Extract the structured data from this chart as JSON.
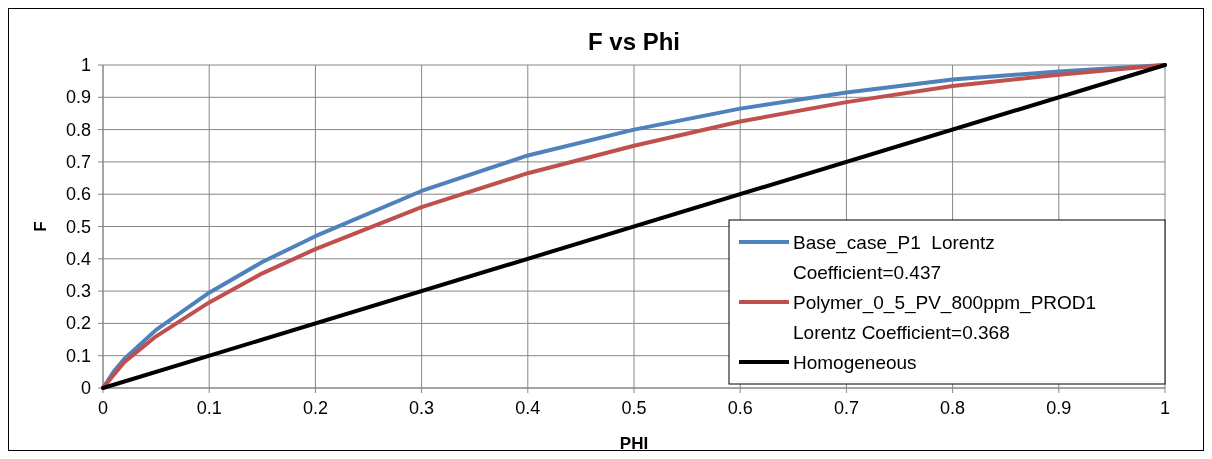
{
  "chart_data": {
    "type": "line",
    "title": "F vs Phi",
    "xlabel": "PHI",
    "ylabel": "F",
    "xlim": [
      0,
      1
    ],
    "ylim": [
      0,
      1
    ],
    "xticks": [
      0,
      0.1,
      0.2,
      0.3,
      0.4,
      0.5,
      0.6,
      0.7,
      0.8,
      0.9,
      1
    ],
    "yticks": [
      0,
      0.1,
      0.2,
      0.3,
      0.4,
      0.5,
      0.6,
      0.7,
      0.8,
      0.9,
      1
    ],
    "grid": true,
    "legend": "bottom right",
    "marker": "none",
    "line_style": "solid",
    "series": [
      {
        "name": "Base_case_P1  Lorentz Coefficient=0.437",
        "color": "#4f81bd",
        "x": [
          0,
          0.01,
          0.02,
          0.05,
          0.1,
          0.15,
          0.2,
          0.3,
          0.4,
          0.5,
          0.6,
          0.7,
          0.8,
          0.9,
          1
        ],
        "values": [
          0,
          0.05,
          0.09,
          0.18,
          0.295,
          0.39,
          0.47,
          0.61,
          0.72,
          0.8,
          0.865,
          0.915,
          0.955,
          0.98,
          1
        ]
      },
      {
        "name": "Polymer_0_5_PV_800ppm_PROD1  Lorentz Coefficient=0.368",
        "color": "#c0504d",
        "x": [
          0,
          0.01,
          0.02,
          0.05,
          0.1,
          0.15,
          0.2,
          0.3,
          0.4,
          0.5,
          0.6,
          0.7,
          0.8,
          0.9,
          1
        ],
        "values": [
          0,
          0.04,
          0.08,
          0.16,
          0.265,
          0.355,
          0.43,
          0.56,
          0.665,
          0.75,
          0.825,
          0.885,
          0.935,
          0.97,
          1
        ]
      },
      {
        "name": "Homogeneous",
        "color": "#000000",
        "x": [
          0,
          1
        ],
        "values": [
          0,
          1
        ]
      }
    ]
  }
}
